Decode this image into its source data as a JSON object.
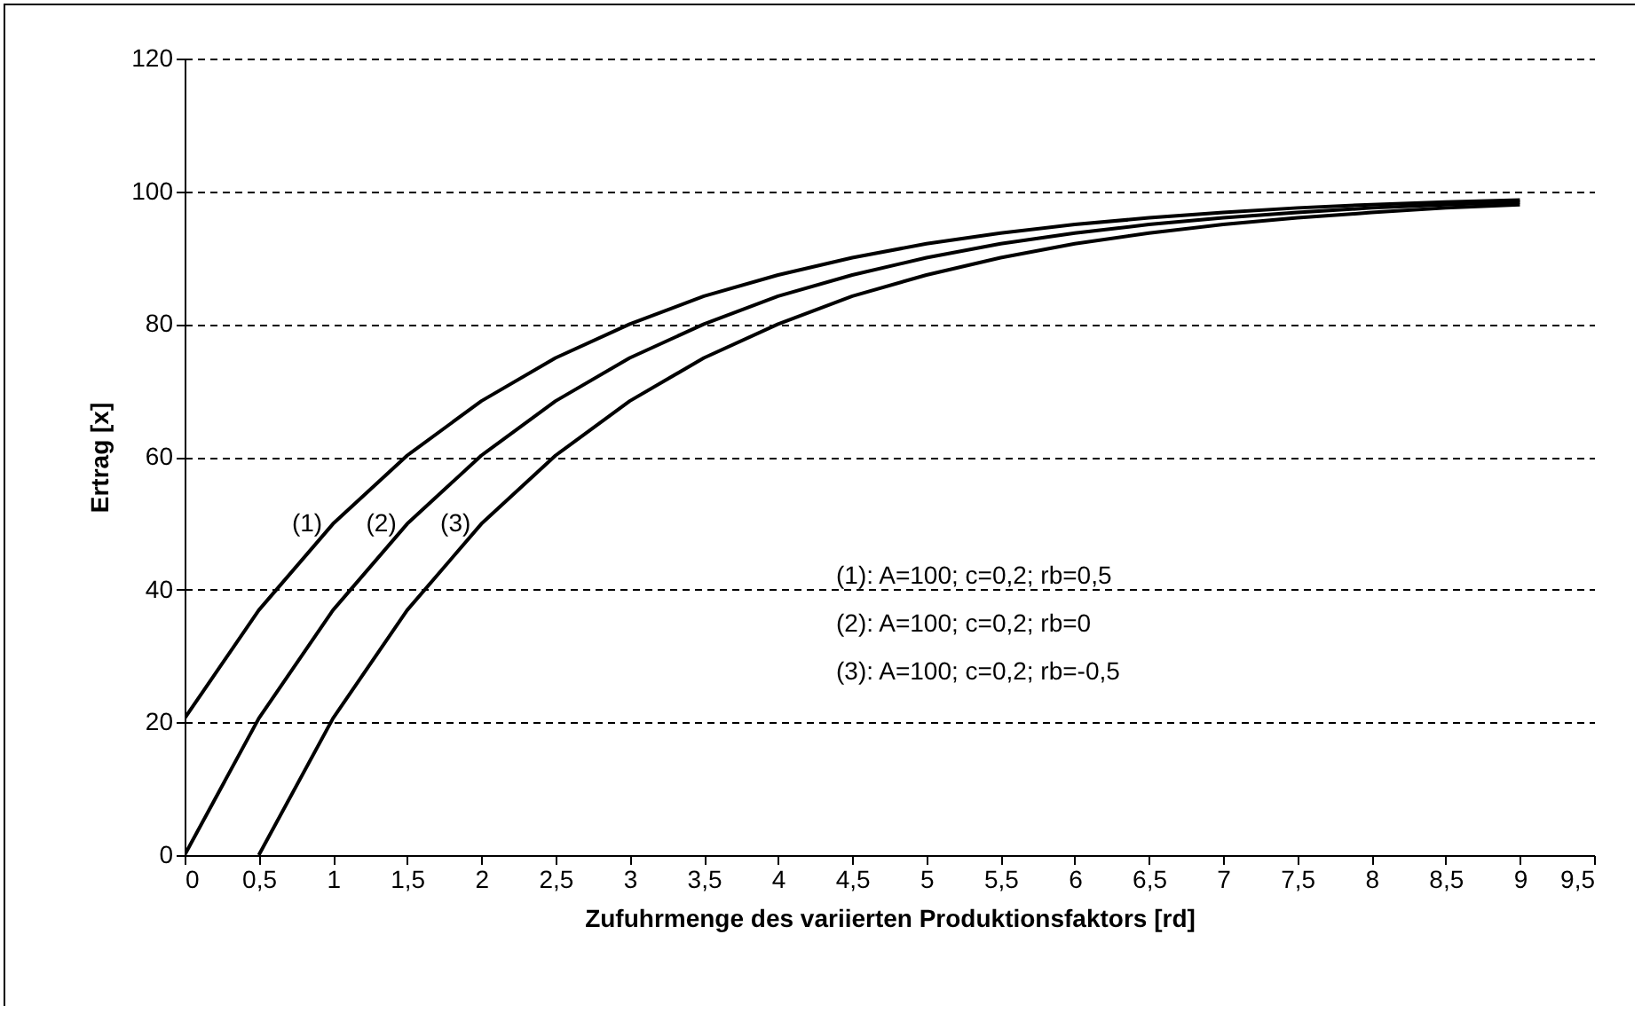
{
  "chart_data": {
    "type": "line",
    "xlabel": "Zufuhrmenge des variierten Produktionsfaktors [rd]",
    "ylabel": "Ertrag [x]",
    "series": [
      {
        "name": "(1)",
        "color": "#000000",
        "x": [
          0,
          0.5,
          1,
          1.5,
          2,
          2.5,
          3,
          3.5,
          4,
          4.5,
          5,
          5.5,
          6,
          6.5,
          7,
          7.5,
          8,
          8.5,
          9
        ],
        "values": [
          20.6,
          36.9,
          49.9,
          60.2,
          68.4,
          74.9,
          80.0,
          84.2,
          87.4,
          90.0,
          92.1,
          93.7,
          95.0,
          96.0,
          96.8,
          97.5,
          98.0,
          98.4,
          98.7
        ]
      },
      {
        "name": "(2)",
        "color": "#000000",
        "x": [
          0,
          0.5,
          1,
          1.5,
          2,
          2.5,
          3,
          3.5,
          4,
          4.5,
          5,
          5.5,
          6,
          6.5,
          7,
          7.5,
          8,
          8.5,
          9
        ],
        "values": [
          0,
          20.6,
          36.9,
          49.9,
          60.2,
          68.4,
          74.9,
          80.0,
          84.2,
          87.4,
          90.0,
          92.1,
          93.7,
          95.0,
          96.0,
          96.8,
          97.5,
          98.0,
          98.4
        ]
      },
      {
        "name": "(3)",
        "color": "#000000",
        "x": [
          0.5,
          1,
          1.5,
          2,
          2.5,
          3,
          3.5,
          4,
          4.5,
          5,
          5.5,
          6,
          6.5,
          7,
          7.5,
          8,
          8.5,
          9
        ],
        "values": [
          0,
          20.6,
          36.9,
          49.9,
          60.2,
          68.4,
          74.9,
          80.0,
          84.2,
          87.4,
          90.0,
          92.1,
          93.7,
          95.0,
          96.0,
          96.8,
          97.5,
          98.0
        ]
      }
    ],
    "annotations": [
      "(1): A=100; c=0,2; rb=0,5",
      "(2): A=100; c=0,2; rb=0",
      "(3): A=100; c=0,2; rb=-0,5"
    ],
    "xlim": [
      0,
      9.5
    ],
    "ylim": [
      0,
      120
    ],
    "xticks": [
      0,
      {
        "value": 0.5,
        "label": "0,5"
      },
      1,
      {
        "value": 1.5,
        "label": "1,5"
      },
      2,
      {
        "value": 2.5,
        "label": "2,5"
      },
      3,
      {
        "value": 3.5,
        "label": "3,5"
      },
      4,
      {
        "value": 4.5,
        "label": "4,5"
      },
      5,
      {
        "value": 5.5,
        "label": "5,5"
      },
      6,
      {
        "value": 6.5,
        "label": "6,5"
      },
      7,
      {
        "value": 7.5,
        "label": "7,5"
      },
      8,
      {
        "value": 8.5,
        "label": "8,5"
      },
      9,
      {
        "value": 9.5,
        "label": "9,5"
      }
    ],
    "yticks": [
      0,
      20,
      40,
      60,
      80,
      100,
      120
    ],
    "grid": "y",
    "line_style": "solid"
  }
}
